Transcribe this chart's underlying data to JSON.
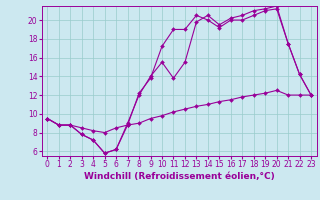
{
  "xlabel": "Windchill (Refroidissement éolien,°C)",
  "bg_color": "#cce8f0",
  "grid_color": "#99cccc",
  "line_color": "#990099",
  "xlim": [
    -0.5,
    23.5
  ],
  "ylim": [
    5.5,
    21.5
  ],
  "xticks": [
    0,
    1,
    2,
    3,
    4,
    5,
    6,
    7,
    8,
    9,
    10,
    11,
    12,
    13,
    14,
    15,
    16,
    17,
    18,
    19,
    20,
    21,
    22,
    23
  ],
  "yticks": [
    6,
    8,
    10,
    12,
    14,
    16,
    18,
    20
  ],
  "line1_x": [
    0,
    1,
    2,
    3,
    4,
    5,
    6,
    7,
    8,
    9,
    10,
    11,
    12,
    13,
    14,
    15,
    16,
    17,
    18,
    19,
    20,
    21,
    22,
    23
  ],
  "line1_y": [
    9.5,
    8.8,
    8.8,
    7.8,
    7.2,
    5.8,
    6.2,
    8.8,
    12.2,
    13.8,
    17.2,
    19.0,
    19.0,
    20.5,
    20.0,
    19.2,
    20.0,
    20.0,
    20.5,
    21.0,
    21.2,
    17.5,
    14.2,
    12.0
  ],
  "line2_x": [
    0,
    1,
    2,
    3,
    4,
    5,
    6,
    7,
    8,
    9,
    10,
    11,
    12,
    13,
    14,
    15,
    16,
    17,
    18,
    19,
    20,
    21,
    22,
    23
  ],
  "line2_y": [
    9.5,
    8.8,
    8.8,
    7.8,
    7.2,
    5.8,
    6.2,
    9.0,
    12.0,
    14.0,
    15.5,
    13.8,
    15.5,
    19.8,
    20.5,
    19.5,
    20.2,
    20.5,
    21.0,
    21.2,
    21.5,
    17.5,
    14.2,
    12.0
  ],
  "line3_x": [
    0,
    1,
    2,
    3,
    4,
    5,
    6,
    7,
    8,
    9,
    10,
    11,
    12,
    13,
    14,
    15,
    16,
    17,
    18,
    19,
    20,
    21,
    22,
    23
  ],
  "line3_y": [
    9.5,
    8.8,
    8.8,
    8.5,
    8.2,
    8.0,
    8.5,
    8.8,
    9.0,
    9.5,
    9.8,
    10.2,
    10.5,
    10.8,
    11.0,
    11.3,
    11.5,
    11.8,
    12.0,
    12.2,
    12.5,
    12.0,
    12.0,
    12.0
  ],
  "marker": "D",
  "markersize": 2.0,
  "linewidth": 0.8,
  "xlabel_fontsize": 6.5,
  "tick_fontsize": 5.5
}
